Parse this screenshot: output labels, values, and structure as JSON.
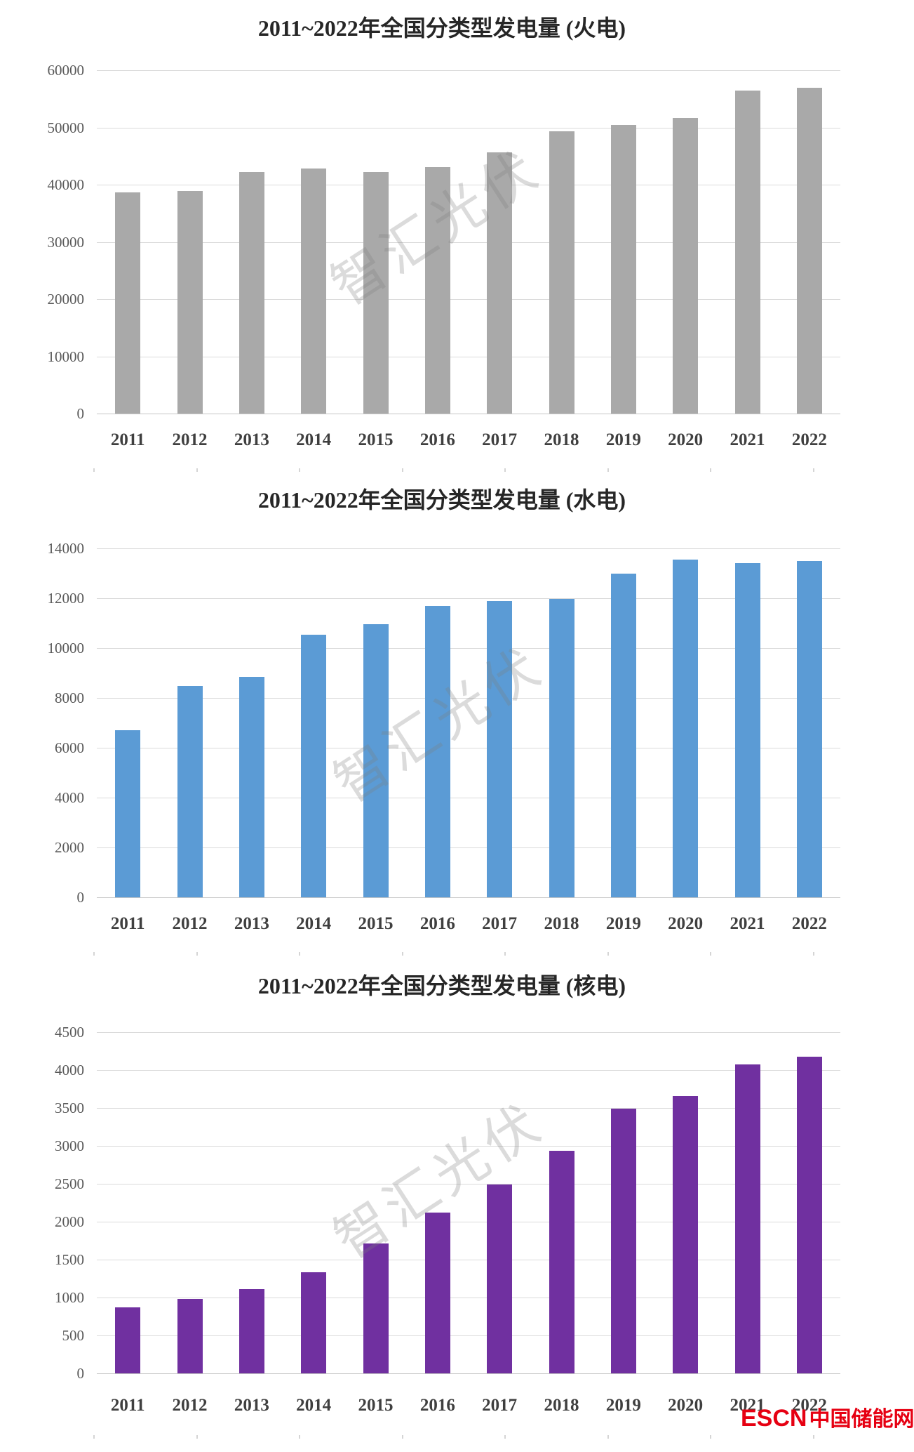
{
  "watermark_text": "智汇光伏",
  "logo": {
    "text_en": "ESCN",
    "text_cn": "中国储能网",
    "color": "#E60012"
  },
  "chart_data": [
    {
      "type": "bar",
      "title": "2011~2022年全国分类型发电量 (火电)",
      "categories": [
        "2011",
        "2012",
        "2013",
        "2014",
        "2015",
        "2016",
        "2017",
        "2018",
        "2019",
        "2020",
        "2021",
        "2022"
      ],
      "values": [
        38700,
        38950,
        42200,
        42850,
        42200,
        43100,
        45600,
        49300,
        50400,
        51700,
        56400,
        57000
      ],
      "y_ticks": [
        60000,
        50000,
        40000,
        30000,
        20000,
        10000,
        0
      ],
      "ylim": [
        0,
        60000
      ],
      "xlabel": "",
      "ylabel": "",
      "grid": true,
      "legend_position": "none",
      "bar_color": "#a9a9a9"
    },
    {
      "type": "bar",
      "title": "2011~2022年全国分类型发电量 (水电)",
      "categories": [
        "2011",
        "2012",
        "2013",
        "2014",
        "2015",
        "2016",
        "2017",
        "2018",
        "2019",
        "2020",
        "2021",
        "2022"
      ],
      "values": [
        6700,
        8480,
        8850,
        10550,
        10950,
        11700,
        11900,
        11980,
        13000,
        13550,
        13400,
        13500
      ],
      "y_ticks": [
        14000,
        12000,
        10000,
        8000,
        6000,
        4000,
        2000,
        0
      ],
      "ylim": [
        0,
        14000
      ],
      "xlabel": "",
      "ylabel": "",
      "grid": true,
      "legend_position": "none",
      "bar_color": "#5b9bd5"
    },
    {
      "type": "bar",
      "title": "2011~2022年全国分类型发电量 (核电)",
      "categories": [
        "2011",
        "2012",
        "2013",
        "2014",
        "2015",
        "2016",
        "2017",
        "2018",
        "2019",
        "2020",
        "2021",
        "2022"
      ],
      "values": [
        870,
        980,
        1115,
        1330,
        1710,
        2125,
        2490,
        2935,
        3490,
        3660,
        4075,
        4175
      ],
      "y_ticks": [
        4500,
        4000,
        3500,
        3000,
        2500,
        2000,
        1500,
        1000,
        500,
        0
      ],
      "ylim": [
        0,
        4500
      ],
      "xlabel": "",
      "ylabel": "",
      "grid": true,
      "legend_position": "none",
      "bar_color": "#7030a0"
    }
  ]
}
